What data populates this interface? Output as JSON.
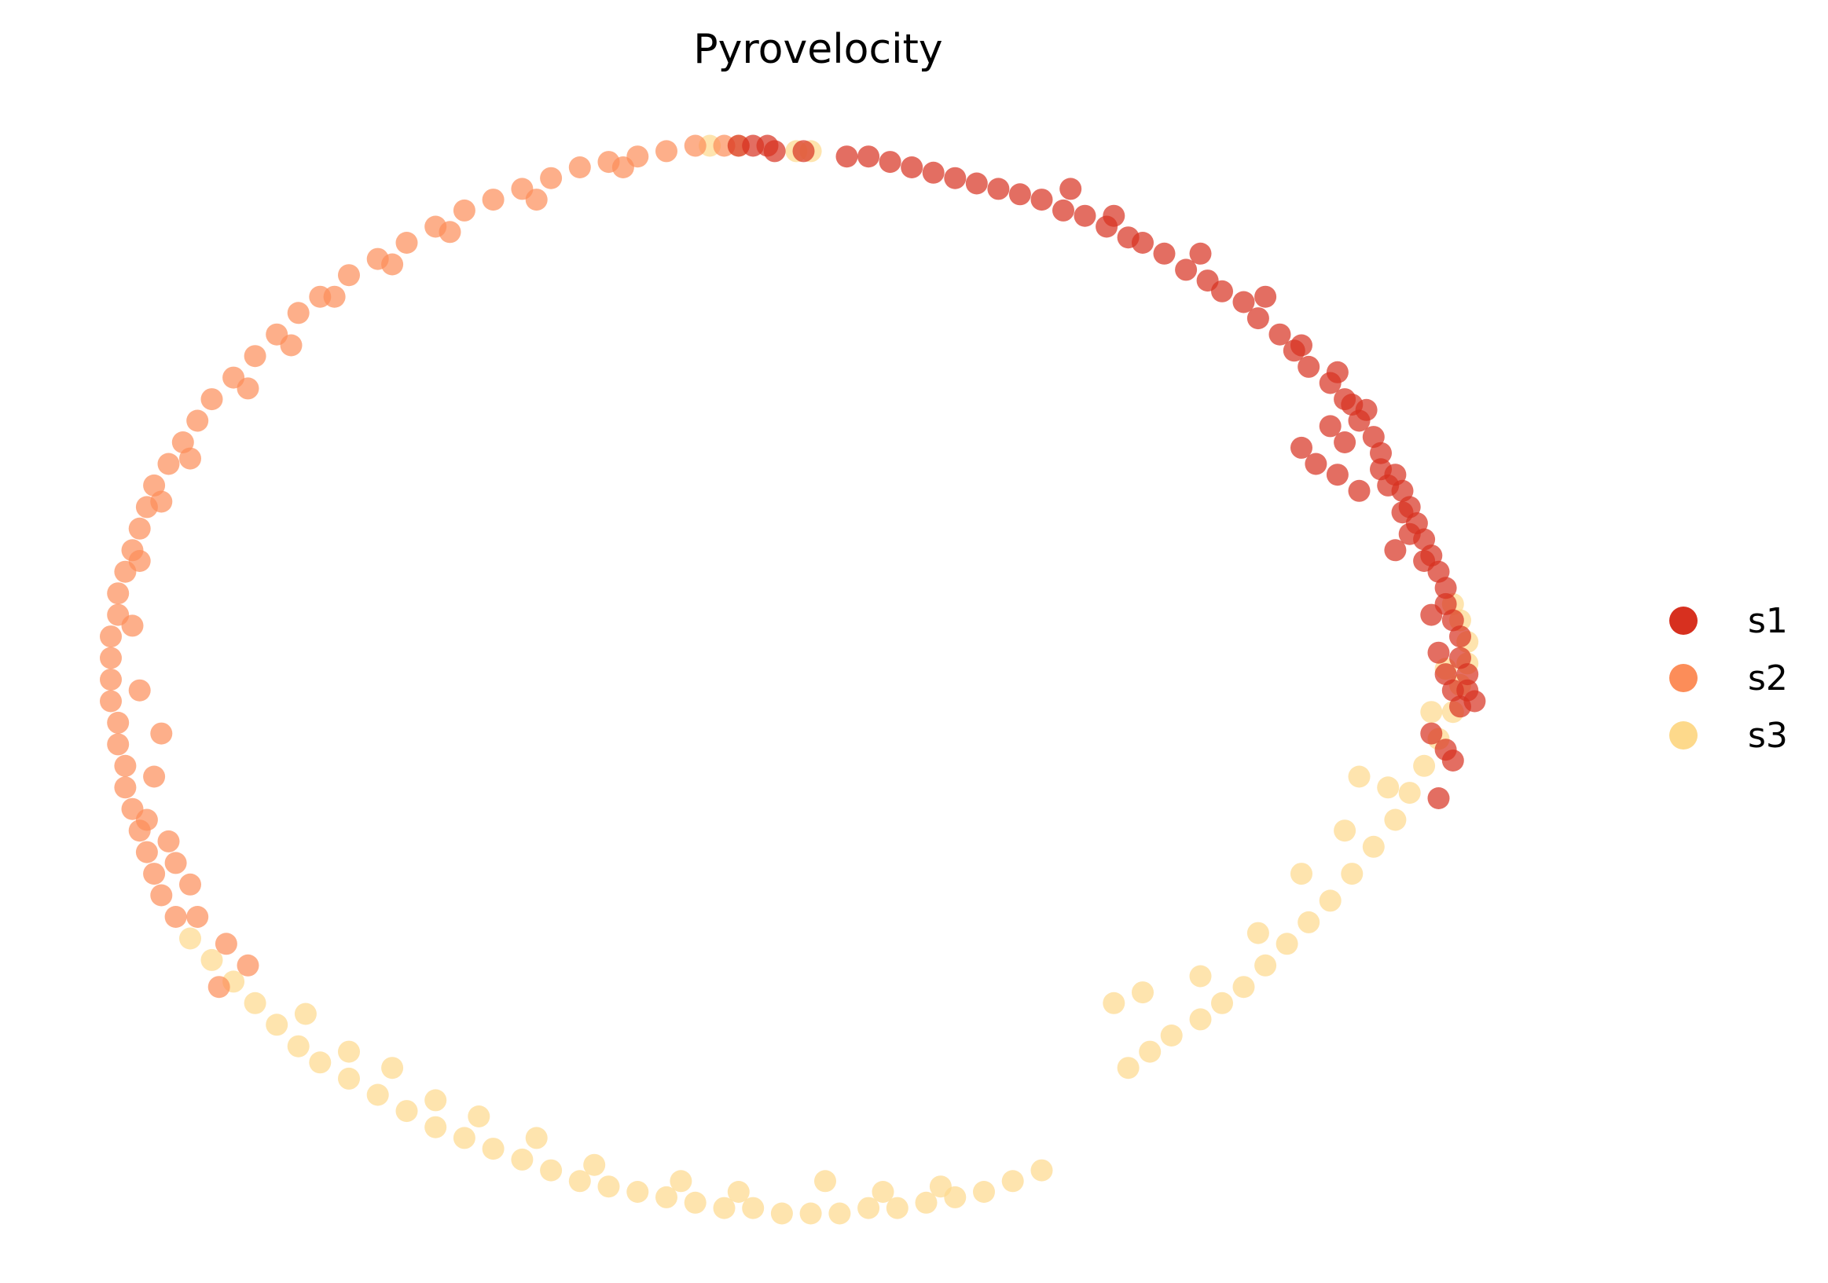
{
  "chart_data": {
    "type": "scatter",
    "title": "Pyrovelocity",
    "xlabel": "",
    "ylabel": "",
    "axes_visible": false,
    "xlim": [
      -1.1,
      1.1
    ],
    "ylim": [
      -1.1,
      1.1
    ],
    "legend_position": "right",
    "series": [
      {
        "name": "s1",
        "color": "#d7301f",
        "points": [
          [
            -0.12,
            0.99
          ],
          [
            -0.1,
            0.99
          ],
          [
            -0.08,
            0.99
          ],
          [
            -0.07,
            0.98
          ],
          [
            -0.03,
            0.98
          ],
          [
            0.03,
            0.97
          ],
          [
            0.06,
            0.97
          ],
          [
            0.09,
            0.96
          ],
          [
            0.12,
            0.95
          ],
          [
            0.15,
            0.94
          ],
          [
            0.18,
            0.93
          ],
          [
            0.21,
            0.92
          ],
          [
            0.24,
            0.91
          ],
          [
            0.27,
            0.9
          ],
          [
            0.3,
            0.89
          ],
          [
            0.33,
            0.87
          ],
          [
            0.36,
            0.86
          ],
          [
            0.39,
            0.84
          ],
          [
            0.42,
            0.82
          ],
          [
            0.44,
            0.81
          ],
          [
            0.47,
            0.79
          ],
          [
            0.5,
            0.76
          ],
          [
            0.53,
            0.74
          ],
          [
            0.55,
            0.72
          ],
          [
            0.58,
            0.7
          ],
          [
            0.6,
            0.67
          ],
          [
            0.63,
            0.64
          ],
          [
            0.65,
            0.61
          ],
          [
            0.67,
            0.58
          ],
          [
            0.7,
            0.55
          ],
          [
            0.72,
            0.52
          ],
          [
            0.74,
            0.48
          ],
          [
            0.76,
            0.45
          ],
          [
            0.77,
            0.42
          ],
          [
            0.79,
            0.38
          ],
          [
            0.8,
            0.35
          ],
          [
            0.81,
            0.32
          ],
          [
            0.82,
            0.29
          ],
          [
            0.83,
            0.26
          ],
          [
            0.84,
            0.23
          ],
          [
            0.85,
            0.2
          ],
          [
            0.86,
            0.17
          ],
          [
            0.86,
            0.14
          ],
          [
            0.87,
            0.11
          ],
          [
            0.88,
            0.08
          ],
          [
            0.88,
            0.04
          ],
          [
            0.89,
            0.01
          ],
          [
            0.89,
            -0.02
          ],
          [
            0.9,
            -0.04
          ],
          [
            0.34,
            0.91
          ],
          [
            0.4,
            0.86
          ],
          [
            0.52,
            0.79
          ],
          [
            0.61,
            0.71
          ],
          [
            0.66,
            0.62
          ],
          [
            0.71,
            0.57
          ],
          [
            0.75,
            0.5
          ],
          [
            0.72,
            0.44
          ],
          [
            0.68,
            0.4
          ],
          [
            0.66,
            0.43
          ],
          [
            0.7,
            0.47
          ],
          [
            0.73,
            0.51
          ],
          [
            0.77,
            0.39
          ],
          [
            0.8,
            0.31
          ],
          [
            0.83,
            0.22
          ],
          [
            0.84,
            0.12
          ],
          [
            0.85,
            0.05
          ],
          [
            0.86,
            0.01
          ],
          [
            0.87,
            -0.02
          ],
          [
            0.88,
            -0.05
          ],
          [
            0.84,
            -0.1
          ],
          [
            0.86,
            -0.13
          ],
          [
            0.87,
            -0.15
          ],
          [
            0.85,
            -0.22
          ],
          [
            0.71,
            0.38
          ],
          [
            0.74,
            0.35
          ],
          [
            0.78,
            0.36
          ],
          [
            0.81,
            0.27
          ],
          [
            0.79,
            0.24
          ]
        ]
      },
      {
        "name": "s2",
        "color": "#fc8d59",
        "points": [
          [
            -0.14,
            0.99
          ],
          [
            -0.18,
            0.99
          ],
          [
            -0.22,
            0.98
          ],
          [
            -0.26,
            0.97
          ],
          [
            -0.3,
            0.96
          ],
          [
            -0.34,
            0.95
          ],
          [
            -0.38,
            0.93
          ],
          [
            -0.42,
            0.91
          ],
          [
            -0.46,
            0.89
          ],
          [
            -0.5,
            0.87
          ],
          [
            -0.54,
            0.84
          ],
          [
            -0.58,
            0.81
          ],
          [
            -0.62,
            0.78
          ],
          [
            -0.66,
            0.75
          ],
          [
            -0.7,
            0.71
          ],
          [
            -0.73,
            0.68
          ],
          [
            -0.76,
            0.64
          ],
          [
            -0.79,
            0.6
          ],
          [
            -0.82,
            0.56
          ],
          [
            -0.85,
            0.52
          ],
          [
            -0.87,
            0.48
          ],
          [
            -0.89,
            0.44
          ],
          [
            -0.91,
            0.4
          ],
          [
            -0.93,
            0.36
          ],
          [
            -0.94,
            0.32
          ],
          [
            -0.95,
            0.28
          ],
          [
            -0.96,
            0.24
          ],
          [
            -0.97,
            0.2
          ],
          [
            -0.98,
            0.16
          ],
          [
            -0.98,
            0.12
          ],
          [
            -0.99,
            0.08
          ],
          [
            -0.99,
            0.04
          ],
          [
            -0.99,
            0.0
          ],
          [
            -0.99,
            -0.04
          ],
          [
            -0.98,
            -0.08
          ],
          [
            -0.98,
            -0.12
          ],
          [
            -0.97,
            -0.16
          ],
          [
            -0.97,
            -0.2
          ],
          [
            -0.96,
            -0.24
          ],
          [
            -0.95,
            -0.28
          ],
          [
            -0.94,
            -0.32
          ],
          [
            -0.93,
            -0.36
          ],
          [
            -0.92,
            -0.4
          ],
          [
            -0.9,
            -0.44
          ],
          [
            -0.28,
            0.95
          ],
          [
            -0.4,
            0.89
          ],
          [
            -0.52,
            0.83
          ],
          [
            -0.6,
            0.77
          ],
          [
            -0.68,
            0.71
          ],
          [
            -0.74,
            0.62
          ],
          [
            -0.8,
            0.54
          ],
          [
            -0.88,
            0.41
          ],
          [
            -0.92,
            0.33
          ],
          [
            -0.95,
            0.22
          ],
          [
            -0.96,
            0.1
          ],
          [
            -0.95,
            -0.02
          ],
          [
            -0.92,
            -0.1
          ],
          [
            -0.93,
            -0.18
          ],
          [
            -0.94,
            -0.26
          ],
          [
            -0.9,
            -0.34
          ],
          [
            -0.88,
            -0.38
          ],
          [
            -0.91,
            -0.3
          ],
          [
            -0.87,
            -0.44
          ],
          [
            -0.83,
            -0.49
          ],
          [
            -0.8,
            -0.53
          ],
          [
            -0.84,
            -0.57
          ]
        ]
      },
      {
        "name": "s3",
        "color": "#fdd98b",
        "points": [
          [
            -0.16,
            0.99
          ],
          [
            -0.12,
            0.99
          ],
          [
            -0.04,
            0.98
          ],
          [
            -0.02,
            0.98
          ],
          [
            -0.88,
            -0.48
          ],
          [
            -0.85,
            -0.52
          ],
          [
            -0.82,
            -0.56
          ],
          [
            -0.79,
            -0.6
          ],
          [
            -0.76,
            -0.64
          ],
          [
            -0.73,
            -0.68
          ],
          [
            -0.7,
            -0.71
          ],
          [
            -0.66,
            -0.74
          ],
          [
            -0.62,
            -0.77
          ],
          [
            -0.58,
            -0.8
          ],
          [
            -0.54,
            -0.83
          ],
          [
            -0.5,
            -0.85
          ],
          [
            -0.46,
            -0.87
          ],
          [
            -0.42,
            -0.89
          ],
          [
            -0.38,
            -0.91
          ],
          [
            -0.34,
            -0.93
          ],
          [
            -0.3,
            -0.94
          ],
          [
            -0.26,
            -0.95
          ],
          [
            -0.22,
            -0.96
          ],
          [
            -0.18,
            -0.97
          ],
          [
            -0.14,
            -0.98
          ],
          [
            -0.1,
            -0.98
          ],
          [
            -0.06,
            -0.99
          ],
          [
            -0.02,
            -0.99
          ],
          [
            0.02,
            -0.99
          ],
          [
            0.06,
            -0.98
          ],
          [
            0.1,
            -0.98
          ],
          [
            0.14,
            -0.97
          ],
          [
            0.18,
            -0.96
          ],
          [
            0.22,
            -0.95
          ],
          [
            0.26,
            -0.93
          ],
          [
            0.3,
            -0.91
          ],
          [
            -0.72,
            -0.62
          ],
          [
            -0.66,
            -0.69
          ],
          [
            -0.6,
            -0.72
          ],
          [
            -0.54,
            -0.78
          ],
          [
            -0.48,
            -0.81
          ],
          [
            -0.4,
            -0.85
          ],
          [
            -0.32,
            -0.9
          ],
          [
            -0.2,
            -0.93
          ],
          [
            -0.12,
            -0.95
          ],
          [
            0.0,
            -0.93
          ],
          [
            0.08,
            -0.95
          ],
          [
            0.16,
            -0.94
          ],
          [
            0.42,
            -0.72
          ],
          [
            0.45,
            -0.69
          ],
          [
            0.48,
            -0.66
          ],
          [
            0.52,
            -0.63
          ],
          [
            0.55,
            -0.6
          ],
          [
            0.58,
            -0.57
          ],
          [
            0.61,
            -0.53
          ],
          [
            0.64,
            -0.49
          ],
          [
            0.67,
            -0.45
          ],
          [
            0.7,
            -0.41
          ],
          [
            0.73,
            -0.36
          ],
          [
            0.76,
            -0.31
          ],
          [
            0.79,
            -0.26
          ],
          [
            0.81,
            -0.21
          ],
          [
            0.83,
            -0.16
          ],
          [
            0.85,
            -0.11
          ],
          [
            0.87,
            -0.06
          ],
          [
            0.88,
            -0.01
          ],
          [
            0.89,
            0.03
          ],
          [
            0.89,
            0.07
          ],
          [
            0.88,
            0.11
          ],
          [
            0.87,
            0.14
          ],
          [
            0.52,
            -0.55
          ],
          [
            0.6,
            -0.47
          ],
          [
            0.72,
            -0.28
          ],
          [
            0.78,
            -0.2
          ],
          [
            0.84,
            -0.06
          ],
          [
            0.86,
            0.02
          ],
          [
            0.4,
            -0.6
          ],
          [
            0.44,
            -0.58
          ],
          [
            0.66,
            -0.36
          ],
          [
            0.74,
            -0.18
          ]
        ]
      }
    ]
  }
}
